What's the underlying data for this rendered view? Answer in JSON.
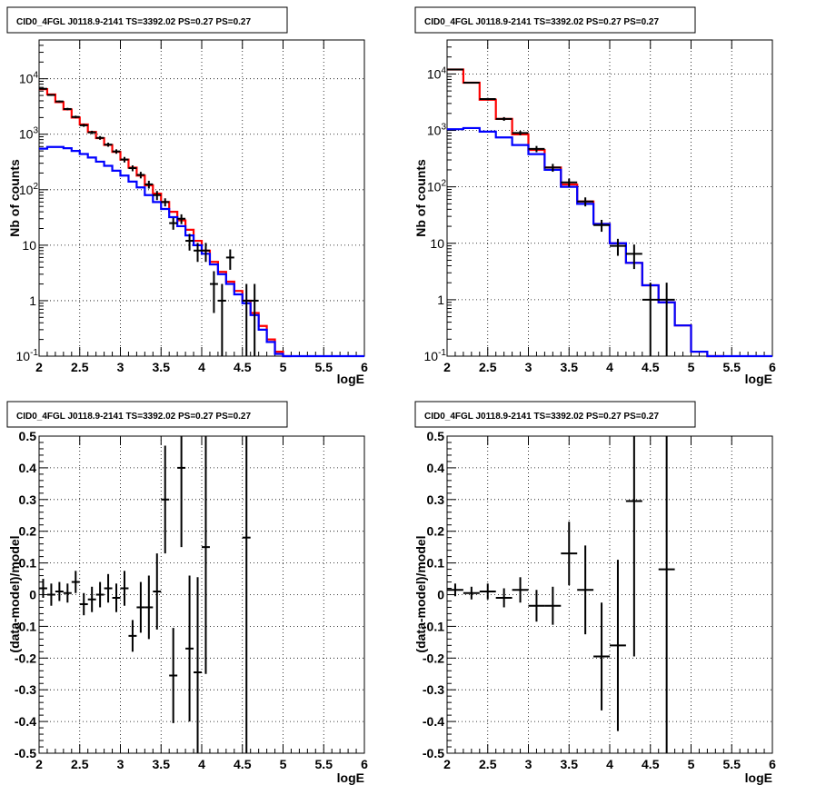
{
  "panels": [
    {
      "title": "CID0_4FGL J0118.9-2141 TS=3392.02 PS=0.27 PS=0.27",
      "xlabel": "logE",
      "ylabel": "Nb of counts",
      "xticks": [
        "2",
        "2.5",
        "3",
        "3.5",
        "4",
        "4.5",
        "5",
        "5.5",
        "6"
      ],
      "yticks": [
        "10^-1",
        "1",
        "10",
        "10^2",
        "10^3",
        "10^4"
      ]
    },
    {
      "title": "CID0_4FGL J0118.9-2141 TS=3392.02 PS=0.27 PS=0.27",
      "xlabel": "logE",
      "ylabel": "Nb of counts",
      "xticks": [
        "2",
        "2.5",
        "3",
        "3.5",
        "4",
        "4.5",
        "5",
        "5.5",
        "6"
      ],
      "yticks": [
        "10^-1",
        "1",
        "10",
        "10^2",
        "10^3",
        "10^4"
      ]
    },
    {
      "title": "CID0_4FGL J0118.9-2141 TS=3392.02 PS=0.27 PS=0.27",
      "xlabel": "logE",
      "ylabel": "(data-model)/model",
      "xticks": [
        "2",
        "2.5",
        "3",
        "3.5",
        "4",
        "4.5",
        "5",
        "5.5",
        "6"
      ],
      "yticks": [
        "-0.5",
        "-0.4",
        "-0.3",
        "-0.2",
        "-0.1",
        "0",
        "0.1",
        "0.2",
        "0.3",
        "0.4",
        "0.5"
      ]
    },
    {
      "title": "CID0_4FGL J0118.9-2141 TS=3392.02 PS=0.27 PS=0.27",
      "xlabel": "logE",
      "ylabel": "(data-model)/model",
      "xticks": [
        "2",
        "2.5",
        "3",
        "3.5",
        "4",
        "4.5",
        "5",
        "5.5",
        "6"
      ],
      "yticks": [
        "-0.5",
        "-0.4",
        "-0.3",
        "-0.2",
        "-0.1",
        "0",
        "0.1",
        "0.2",
        "0.3",
        "0.4",
        "0.5"
      ]
    }
  ],
  "colors": {
    "total_model": "#ff0000",
    "component_model": "#0000ff",
    "data": "#000000",
    "grid": "#000000"
  },
  "chart_data": [
    {
      "type": "line",
      "scale": "log",
      "xlim": [
        2,
        6
      ],
      "ylim": [
        0.1,
        50000
      ],
      "grid": true,
      "bin_width": 0.1,
      "series": [
        {
          "color": "red",
          "kind": "histogram",
          "x": [
            2.0,
            2.1,
            2.2,
            2.3,
            2.4,
            2.5,
            2.6,
            2.7,
            2.8,
            2.9,
            3.0,
            3.1,
            3.2,
            3.3,
            3.4,
            3.5,
            3.6,
            3.7,
            3.8,
            3.9,
            4.0,
            4.1,
            4.2,
            4.3,
            4.4,
            4.5,
            4.6,
            4.7,
            4.8,
            4.9,
            5.0
          ],
          "values": [
            6500,
            5200,
            3800,
            2800,
            2000,
            1500,
            1100,
            850,
            640,
            480,
            350,
            250,
            180,
            120,
            85,
            60,
            40,
            28,
            19,
            12,
            8,
            5,
            3.3,
            2.2,
            1.5,
            1,
            0.6,
            0.35,
            0.2,
            0.12,
            0.1
          ]
        },
        {
          "color": "blue",
          "kind": "histogram",
          "x": [
            2.0,
            2.1,
            2.2,
            2.3,
            2.4,
            2.5,
            2.6,
            2.7,
            2.8,
            2.9,
            3.0,
            3.1,
            3.2,
            3.3,
            3.4,
            3.5,
            3.6,
            3.7,
            3.8,
            3.9,
            4.0,
            4.1,
            4.2,
            4.3,
            4.4,
            4.5,
            4.6,
            4.7,
            4.8,
            4.9,
            5.0,
            5.1,
            5.2,
            5.3,
            5.4,
            5.5,
            5.6,
            5.7,
            5.8,
            5.9
          ],
          "values": [
            550,
            590,
            590,
            560,
            500,
            440,
            380,
            320,
            270,
            220,
            180,
            140,
            110,
            80,
            60,
            45,
            32,
            22,
            15,
            10,
            7,
            4.5,
            3,
            2,
            1.3,
            0.9,
            0.55,
            0.3,
            0.18,
            0.11,
            0.1,
            0.1,
            0.1,
            0.1,
            0.1,
            0.1,
            0.1,
            0.1,
            0.1,
            0.1
          ]
        },
        {
          "color": "black",
          "kind": "errorbar",
          "points": [
            {
              "x": 2.05,
              "y": 6600,
              "err": 220
            },
            {
              "x": 2.15,
              "y": 5100,
              "err": 190
            },
            {
              "x": 2.25,
              "y": 3900,
              "err": 160
            },
            {
              "x": 2.35,
              "y": 2850,
              "err": 140
            },
            {
              "x": 2.45,
              "y": 2050,
              "err": 110
            },
            {
              "x": 2.55,
              "y": 1450,
              "err": 90
            },
            {
              "x": 2.65,
              "y": 1080,
              "err": 75
            },
            {
              "x": 2.75,
              "y": 860,
              "err": 65
            },
            {
              "x": 2.85,
              "y": 650,
              "err": 55
            },
            {
              "x": 2.95,
              "y": 490,
              "err": 45
            },
            {
              "x": 3.05,
              "y": 350,
              "err": 40
            },
            {
              "x": 3.15,
              "y": 245,
              "err": 30
            },
            {
              "x": 3.25,
              "y": 185,
              "err": 25
            },
            {
              "x": 3.35,
              "y": 125,
              "err": 20
            },
            {
              "x": 3.45,
              "y": 80,
              "err": 15
            },
            {
              "x": 3.55,
              "y": 60,
              "err": 10
            },
            {
              "x": 3.65,
              "y": 25,
              "err": 6
            },
            {
              "x": 3.75,
              "y": 30,
              "err": 6
            },
            {
              "x": 3.85,
              "y": 12,
              "err": 4
            },
            {
              "x": 3.95,
              "y": 8,
              "err": 3
            },
            {
              "x": 4.05,
              "y": 8,
              "err": 3
            },
            {
              "x": 4.15,
              "y": 2,
              "err": 1.4
            },
            {
              "x": 4.25,
              "y": 1,
              "err": 1
            },
            {
              "x": 4.35,
              "y": 6,
              "err": 2.4
            },
            {
              "x": 4.55,
              "y": 1,
              "err": 1
            },
            {
              "x": 4.65,
              "y": 1,
              "err": 1
            }
          ]
        }
      ]
    },
    {
      "type": "line",
      "scale": "log",
      "xlim": [
        2,
        6
      ],
      "ylim": [
        0.1,
        40000
      ],
      "grid": true,
      "bin_width": 0.2,
      "series": [
        {
          "color": "red",
          "kind": "histogram",
          "x": [
            2.0,
            2.2,
            2.4,
            2.6,
            2.8,
            3.0,
            3.2,
            3.4,
            3.6,
            3.8,
            4.0,
            4.2,
            4.4,
            4.6,
            4.8,
            5.0,
            5.2
          ],
          "values": [
            12000,
            7000,
            3500,
            1600,
            850,
            450,
            220,
            110,
            55,
            22,
            10,
            4.5,
            1.8,
            0.9,
            0.35,
            0.12,
            0.1
          ]
        },
        {
          "color": "blue",
          "kind": "histogram",
          "x": [
            2.0,
            2.2,
            2.4,
            2.6,
            2.8,
            3.0,
            3.2,
            3.4,
            3.6,
            3.8,
            4.0,
            4.2,
            4.4,
            4.6,
            4.8,
            5.0,
            5.2,
            5.4,
            5.6,
            5.8
          ],
          "values": [
            1050,
            1100,
            950,
            750,
            550,
            380,
            200,
            100,
            50,
            22,
            10,
            4.5,
            1.8,
            0.9,
            0.35,
            0.12,
            0.1,
            0.1,
            0.1,
            0.1
          ]
        },
        {
          "color": "black",
          "kind": "errorbar",
          "points": [
            {
              "x": 2.1,
              "y": 12000,
              "err": 300
            },
            {
              "x": 2.3,
              "y": 7000,
              "err": 240
            },
            {
              "x": 2.5,
              "y": 3600,
              "err": 170
            },
            {
              "x": 2.7,
              "y": 1600,
              "err": 120
            },
            {
              "x": 2.9,
              "y": 900,
              "err": 80
            },
            {
              "x": 3.1,
              "y": 470,
              "err": 60
            },
            {
              "x": 3.3,
              "y": 220,
              "err": 35
            },
            {
              "x": 3.5,
              "y": 120,
              "err": 20
            },
            {
              "x": 3.7,
              "y": 55,
              "err": 10
            },
            {
              "x": 3.9,
              "y": 21,
              "err": 5
            },
            {
              "x": 4.1,
              "y": 9,
              "err": 3
            },
            {
              "x": 4.3,
              "y": 6.5,
              "err": 3
            },
            {
              "x": 4.5,
              "y": 1,
              "err": 1
            },
            {
              "x": 4.7,
              "y": 1,
              "err": 1
            }
          ]
        }
      ]
    },
    {
      "type": "scatter",
      "xlim": [
        2,
        6
      ],
      "ylim": [
        -0.5,
        0.5
      ],
      "grid": true,
      "bin_width": 0.1,
      "series": [
        {
          "color": "black",
          "kind": "errorbar",
          "points": [
            {
              "x": 2.05,
              "y": 0.02,
              "err": 0.03
            },
            {
              "x": 2.15,
              "y": 0.0,
              "err": 0.035
            },
            {
              "x": 2.25,
              "y": 0.01,
              "err": 0.03
            },
            {
              "x": 2.35,
              "y": 0.005,
              "err": 0.03
            },
            {
              "x": 2.45,
              "y": 0.04,
              "err": 0.035
            },
            {
              "x": 2.55,
              "y": -0.03,
              "err": 0.035
            },
            {
              "x": 2.65,
              "y": -0.015,
              "err": 0.04
            },
            {
              "x": 2.75,
              "y": 0.0,
              "err": 0.04
            },
            {
              "x": 2.85,
              "y": 0.02,
              "err": 0.045
            },
            {
              "x": 2.95,
              "y": -0.01,
              "err": 0.045
            },
            {
              "x": 3.05,
              "y": 0.02,
              "err": 0.055
            },
            {
              "x": 3.15,
              "y": -0.13,
              "err": 0.05
            },
            {
              "x": 3.25,
              "y": -0.04,
              "err": 0.08
            },
            {
              "x": 3.35,
              "y": -0.04,
              "err": 0.1
            },
            {
              "x": 3.45,
              "y": 0.01,
              "err": 0.12
            },
            {
              "x": 3.55,
              "y": 0.3,
              "err": 0.17
            },
            {
              "x": 3.65,
              "y": -0.255,
              "err": 0.15
            },
            {
              "x": 3.75,
              "y": 0.4,
              "err": 0.25
            },
            {
              "x": 3.85,
              "y": -0.17,
              "err": 0.23
            },
            {
              "x": 3.95,
              "y": -0.245,
              "err": 0.3
            },
            {
              "x": 4.05,
              "y": 0.15,
              "err": 0.4
            },
            {
              "x": 4.55,
              "y": 0.18,
              "err": 1.0
            }
          ]
        }
      ]
    },
    {
      "type": "scatter",
      "xlim": [
        2,
        6
      ],
      "ylim": [
        -0.5,
        0.5
      ],
      "grid": true,
      "bin_width": 0.2,
      "series": [
        {
          "color": "black",
          "kind": "errorbar",
          "points": [
            {
              "x": 2.1,
              "y": 0.015,
              "err": 0.02
            },
            {
              "x": 2.3,
              "y": 0.005,
              "err": 0.02
            },
            {
              "x": 2.5,
              "y": 0.01,
              "err": 0.025
            },
            {
              "x": 2.7,
              "y": -0.01,
              "err": 0.03
            },
            {
              "x": 2.9,
              "y": 0.015,
              "err": 0.04
            },
            {
              "x": 3.1,
              "y": -0.035,
              "err": 0.05
            },
            {
              "x": 3.3,
              "y": -0.035,
              "err": 0.06
            },
            {
              "x": 3.5,
              "y": 0.13,
              "err": 0.1
            },
            {
              "x": 3.7,
              "y": 0.015,
              "err": 0.14
            },
            {
              "x": 3.9,
              "y": -0.195,
              "err": 0.17
            },
            {
              "x": 4.1,
              "y": -0.16,
              "err": 0.27
            },
            {
              "x": 4.3,
              "y": 0.295,
              "err": 0.49
            },
            {
              "x": 4.7,
              "y": 0.08,
              "err": 1.0
            }
          ]
        }
      ]
    }
  ]
}
